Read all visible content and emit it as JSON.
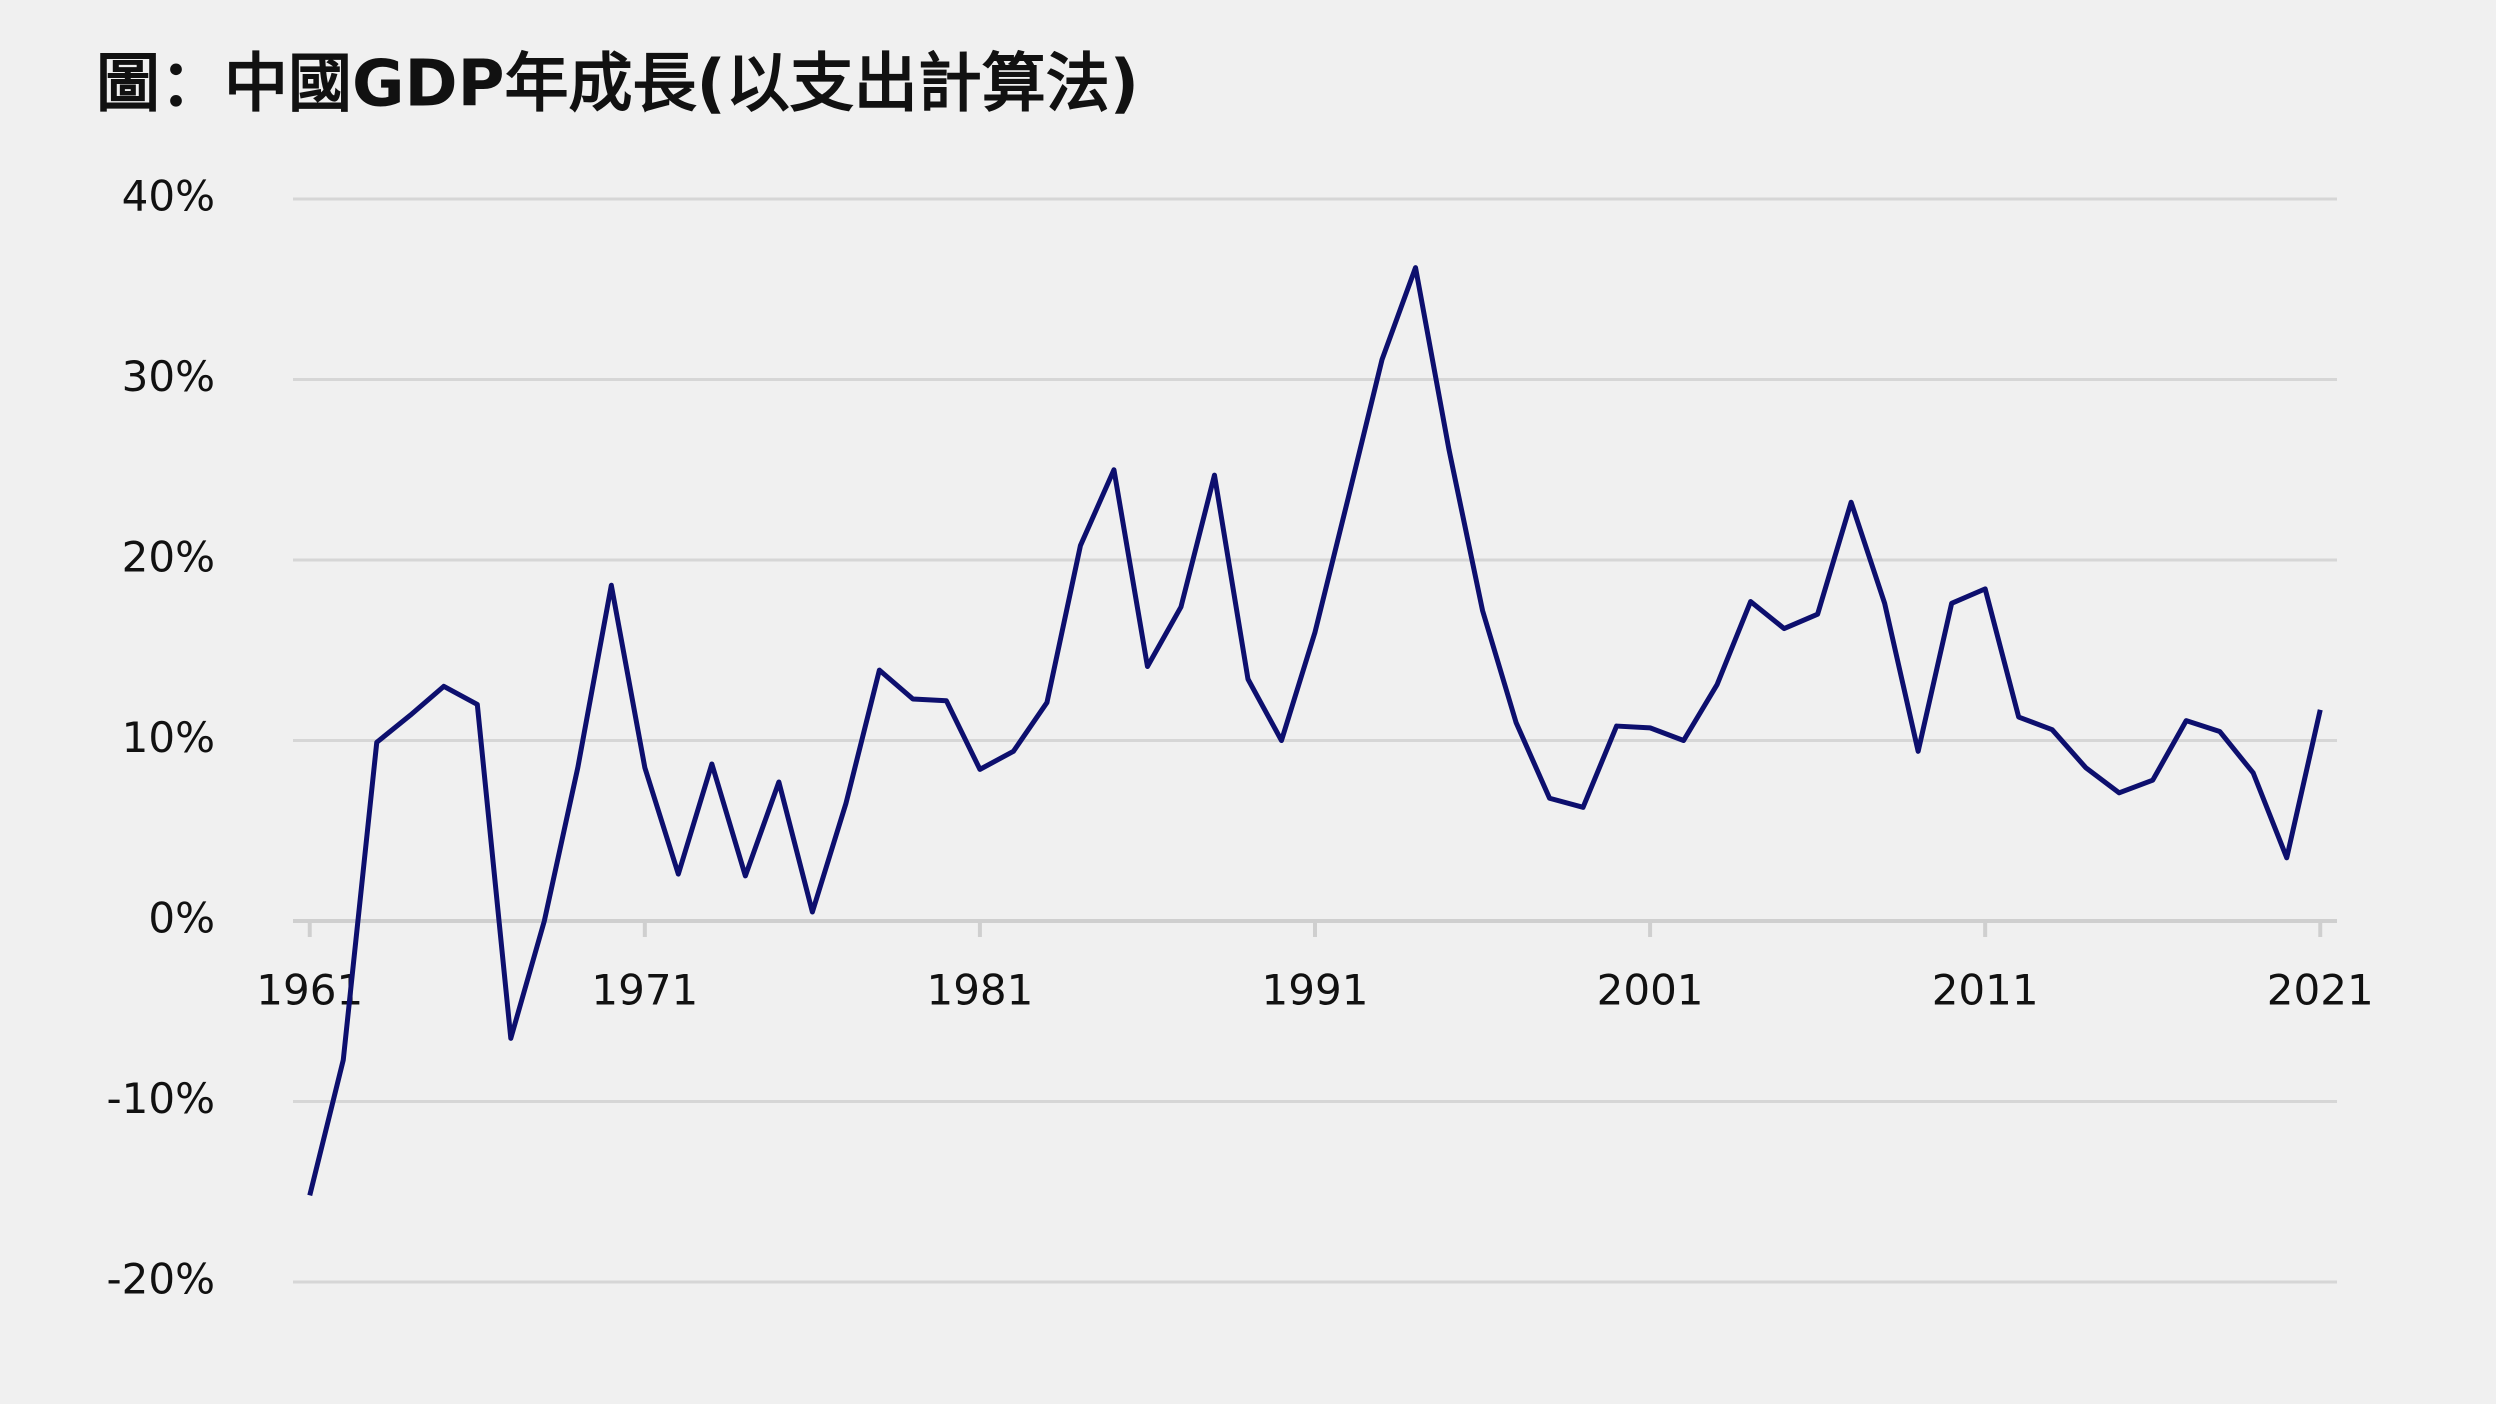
{
  "chart_data": {
    "type": "line",
    "title": "圖：中國GDP年成長(以支出計算法)",
    "x": [
      1961,
      1962,
      1963,
      1964,
      1965,
      1966,
      1967,
      1968,
      1969,
      1970,
      1971,
      1972,
      1973,
      1974,
      1975,
      1976,
      1977,
      1978,
      1979,
      1980,
      1981,
      1982,
      1983,
      1984,
      1985,
      1986,
      1987,
      1988,
      1989,
      1990,
      1991,
      1992,
      1993,
      1994,
      1995,
      1996,
      1997,
      1998,
      1999,
      2000,
      2001,
      2002,
      2003,
      2004,
      2005,
      2006,
      2007,
      2008,
      2009,
      2010,
      2011,
      2012,
      2013,
      2014,
      2015,
      2016,
      2017,
      2018,
      2019,
      2020,
      2021
    ],
    "series": [
      {
        "color": "#0d0f6e",
        "values": [
          -15.2,
          -7.7,
          9.9,
          11.4,
          13.0,
          12.0,
          -6.5,
          0.0,
          8.5,
          18.6,
          8.5,
          2.6,
          8.7,
          2.5,
          7.7,
          0.5,
          6.5,
          13.9,
          12.3,
          12.2,
          8.4,
          9.4,
          12.1,
          20.8,
          25.0,
          14.1,
          17.4,
          24.7,
          13.4,
          10.0,
          16.0,
          23.5,
          31.1,
          36.2,
          26.1,
          17.2,
          11.0,
          6.8,
          6.3,
          10.8,
          10.7,
          10.0,
          13.1,
          17.7,
          16.2,
          17.0,
          23.2,
          17.6,
          9.4,
          17.6,
          18.4,
          11.3,
          10.6,
          8.5,
          7.1,
          7.8,
          11.1,
          10.5,
          8.2,
          3.5,
          11.7
        ]
      }
    ],
    "xlim": [
      1960.5,
      2021.5
    ],
    "xticks": [
      1961,
      1971,
      1981,
      1991,
      2001,
      2011,
      2021
    ],
    "ylim": [
      -20,
      40
    ],
    "yticks": [
      {
        "value": -20,
        "label": "-20%"
      },
      {
        "value": -10,
        "label": "-10%"
      },
      {
        "value": 0,
        "label": "0%"
      },
      {
        "value": 10,
        "label": "10%"
      },
      {
        "value": 20,
        "label": "20%"
      },
      {
        "value": 30,
        "label": "30%"
      },
      {
        "value": 40,
        "label": "40%"
      }
    ],
    "grid": true
  }
}
